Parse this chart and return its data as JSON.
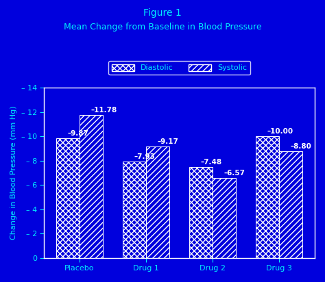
{
  "title_line1": "Figure 1",
  "title_line2": "Mean Change from Baseline in Blood Pressure",
  "ylabel": "Change in Blood Pressure (mm Hg)",
  "categories": [
    "Placebo",
    "Drug 1",
    "Drug 2",
    "Drug 3"
  ],
  "diastolic": [
    9.87,
    7.93,
    7.48,
    10.0
  ],
  "systolic": [
    11.78,
    9.17,
    6.57,
    8.8
  ],
  "diastolic_labels": [
    "–9.87",
    "–7.93",
    "–7.48",
    "–10.00"
  ],
  "systolic_labels": [
    "–11.78",
    "–9.17",
    "–6.57",
    "–8.80"
  ],
  "background_color": "#0000dd",
  "bar_edge_color": "#ffffff",
  "text_color": "#00eeff",
  "label_color": "#ffffff",
  "ylim": [
    0,
    14
  ],
  "ytick_vals": [
    0,
    2,
    4,
    6,
    8,
    10,
    12,
    14
  ],
  "ytick_labels": [
    "0",
    "– 2",
    "– 4",
    "– 6",
    "– 8",
    "– 10",
    "– 12",
    "– 14"
  ],
  "bar_width": 0.35,
  "legend_diastolic": "Diastolic",
  "legend_systolic": "Systolic",
  "title_fontsize": 10,
  "axis_label_fontsize": 8,
  "tick_fontsize": 8,
  "bar_label_fontsize": 7.5,
  "legend_fontsize": 8
}
